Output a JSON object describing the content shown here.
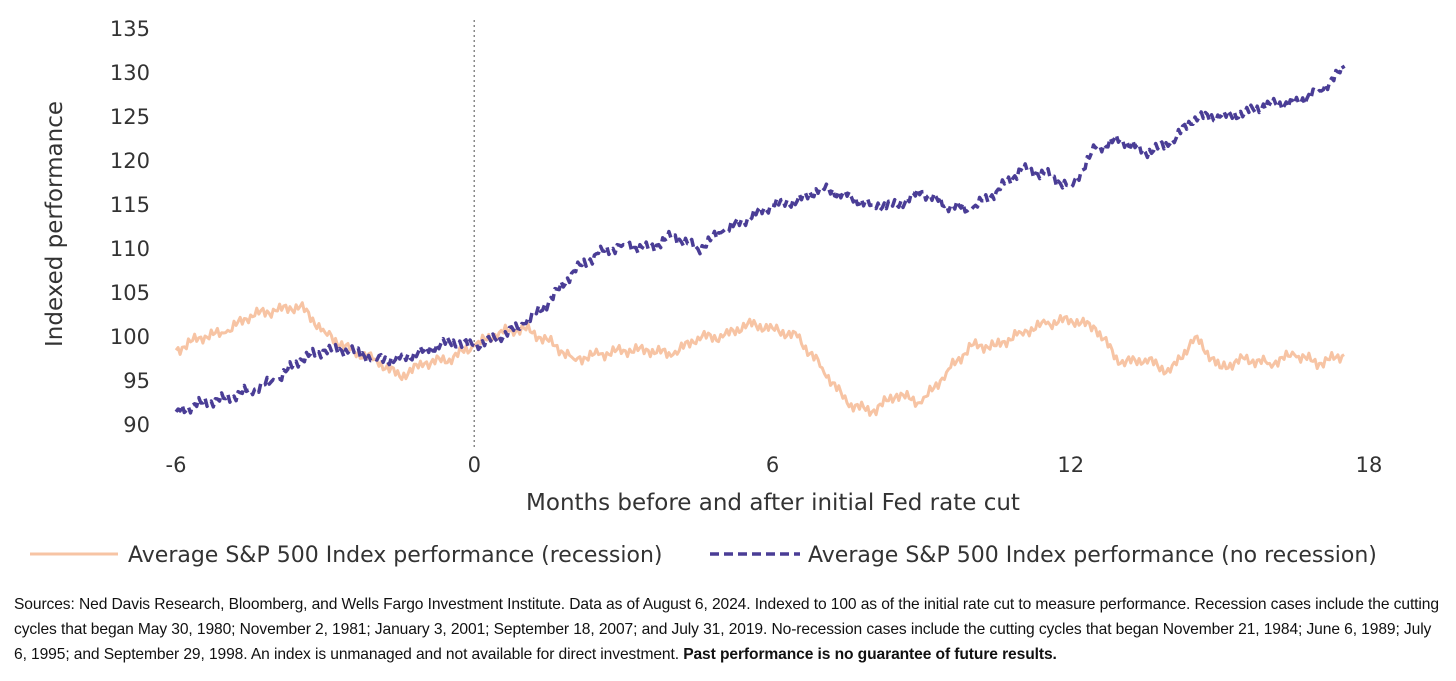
{
  "chart_data": {
    "type": "line",
    "title": "",
    "xlabel": "Months before and after initial Fed rate cut",
    "ylabel": "Indexed performance",
    "xlim": [
      -6,
      18
    ],
    "ylim": [
      90,
      135
    ],
    "x_ticks": [
      "-6",
      "0",
      "6",
      "12",
      "18"
    ],
    "x_tick_values": [
      -6,
      0,
      6,
      12,
      18
    ],
    "y_ticks": [
      "90",
      "95",
      "100",
      "105",
      "110",
      "115",
      "120",
      "125",
      "130",
      "135"
    ],
    "y_tick_values": [
      90,
      95,
      100,
      105,
      110,
      115,
      120,
      125,
      130,
      135
    ],
    "grid": false,
    "vertical_reference_x": 0,
    "legend_position": "bottom",
    "series": [
      {
        "name": "Average S&P 500 Index performance (recession)",
        "color": "#f7c4a4",
        "style": "solid",
        "x": [
          -6,
          -5.5,
          -5,
          -4.5,
          -4,
          -3.5,
          -3,
          -2.5,
          -2,
          -1.5,
          -1,
          -0.5,
          0,
          0.5,
          1,
          1.5,
          2,
          2.5,
          3,
          3.5,
          4,
          4.5,
          5,
          5.5,
          6,
          6.5,
          7,
          7.5,
          8,
          8.5,
          9,
          9.5,
          10,
          10.5,
          11,
          11.5,
          12,
          12.5,
          13,
          13.5,
          14,
          14.5,
          15,
          15.5,
          16,
          16.5,
          17,
          17.5
        ],
        "y": [
          98.5,
          100,
          100.5,
          102.5,
          103,
          103.5,
          100.5,
          98.5,
          97.5,
          95.5,
          97,
          97.5,
          99,
          100.5,
          101,
          99.5,
          97.5,
          98,
          98.5,
          98.5,
          98,
          100,
          100,
          101.5,
          101,
          100,
          96.5,
          92.5,
          91.5,
          93.5,
          92.5,
          96,
          99,
          99,
          100.5,
          101.5,
          102,
          101,
          97,
          97.5,
          96,
          100,
          96.5,
          97.5,
          97,
          98,
          97,
          98
        ]
      },
      {
        "name": "Average S&P 500 Index performance (no recession)",
        "color": "#4a3d96",
        "style": "dashed",
        "x": [
          -6,
          -5.5,
          -5,
          -4.5,
          -4,
          -3.5,
          -3,
          -2.5,
          -2,
          -1.5,
          -1,
          -0.5,
          0,
          0.5,
          1,
          1.5,
          2,
          2.5,
          3,
          3.5,
          4,
          4.5,
          5,
          5.5,
          6,
          6.5,
          7,
          7.5,
          8,
          8.5,
          9,
          9.5,
          10,
          10.5,
          11,
          11.5,
          12,
          12.5,
          13,
          13.5,
          14,
          14.5,
          15,
          15.5,
          16,
          16.5,
          17,
          17.5
        ],
        "y": [
          91.5,
          92.5,
          93,
          94,
          95,
          97.5,
          98.5,
          98.5,
          97.5,
          97.5,
          98.5,
          99.5,
          99,
          100,
          101.5,
          104,
          107.5,
          109.5,
          110.5,
          110,
          111.5,
          110,
          112,
          113.5,
          115,
          115.5,
          117,
          116,
          115,
          115,
          116.5,
          115,
          114.5,
          116.5,
          119,
          118.5,
          117,
          121.5,
          122.5,
          121,
          122,
          125,
          125,
          125.5,
          126.5,
          126.5,
          128,
          130.5
        ]
      }
    ]
  },
  "footnote": {
    "text": "Sources: Ned Davis Research, Bloomberg, and Wells Fargo Investment Institute. Data as of August 6, 2024. Indexed to 100 as of the initial rate cut to measure performance. Recession cases include the cutting cycles that began May 30, 1980; November 2, 1981; January 3, 2001; September 18, 2007; and July 31, 2019. No-recession cases include the cutting cycles that began November 21, 1984; June 6, 1989; July 6, 1995; and September 29, 1998. An index is unmanaged and not available for direct investment.",
    "bold_text": "Past performance is no guarantee of future results."
  }
}
